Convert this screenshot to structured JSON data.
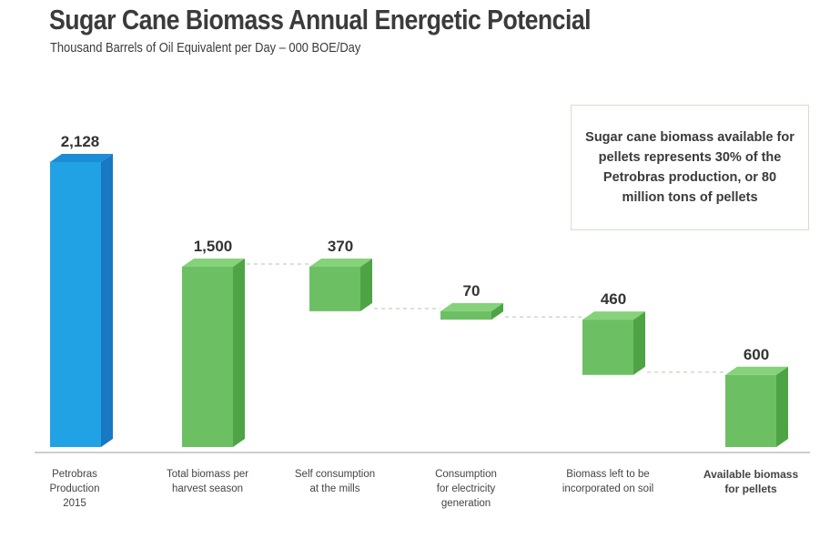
{
  "header": {
    "title": "Sugar Cane Biomass Annual Energetic Potencial",
    "subtitle": "Thousand Barrels of Oil Equivalent per Day – 000 BOE/Day"
  },
  "note": {
    "text": "Sugar cane biomass available for pellets represents 30% of the Petrobras production, or 80 million tons of pellets"
  },
  "colors": {
    "blue_front": "#21a2e4",
    "blue_side": "#1a78c2",
    "blue_top": "#1c8ed8",
    "green_front": "#6dbf64",
    "green_side": "#4ea444",
    "green_top": "#85d27a",
    "connector": "#c9dcc5",
    "baseline": "#bdbdbd"
  },
  "chart_data": {
    "type": "bar",
    "subtype": "waterfall",
    "title": "Sugar Cane Biomass Annual Energetic Potencial",
    "ylabel": "Thousand Barrels of Oil Equivalent per Day – 000 BOE/Day",
    "categories": [
      "Petrobras Production 2015",
      "Total biomass per harvest season",
      "Self consumption at the mills",
      "Consumption for electricity generation",
      "Biomass left to be incorporated on soil",
      "Available biomass for pellets"
    ],
    "category_lines": [
      [
        "Petrobras",
        "Production",
        "2015"
      ],
      [
        "Total biomass per",
        "harvest season"
      ],
      [
        "Self consumption",
        "at the mills"
      ],
      [
        "Consumption",
        "for electricity",
        "generation"
      ],
      [
        "Biomass left to be",
        "incorporated on soil"
      ],
      [
        "Available biomass",
        "for pellets"
      ]
    ],
    "values": [
      2128,
      1500,
      370,
      70,
      460,
      600
    ],
    "labels": [
      "2,128",
      "1,500",
      "370",
      "70",
      "460",
      "600"
    ],
    "kinds": [
      "reference",
      "total",
      "decrease",
      "decrease",
      "decrease",
      "total"
    ],
    "series_color": [
      "blue",
      "green",
      "green",
      "green",
      "green",
      "green"
    ],
    "ylim": [
      0,
      2128
    ],
    "grid": false,
    "legend": "none"
  }
}
